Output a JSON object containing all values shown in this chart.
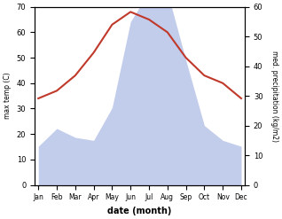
{
  "months": [
    "Jan",
    "Feb",
    "Mar",
    "Apr",
    "May",
    "Jun",
    "Jul",
    "Aug",
    "Sep",
    "Oct",
    "Nov",
    "Dec"
  ],
  "temperature": [
    34,
    37,
    43,
    52,
    63,
    68,
    65,
    60,
    50,
    43,
    40,
    34
  ],
  "precipitation": [
    13,
    19,
    16,
    15,
    26,
    55,
    65,
    65,
    42,
    20,
    15,
    13
  ],
  "temp_color": "#c0392b",
  "precip_fill_color": "#b8c4e8",
  "ylabel_left": "max temp (C)",
  "ylabel_right": "med. precipitation (kg/m2)",
  "xlabel": "date (month)",
  "ylim_left": [
    0,
    70
  ],
  "ylim_right": [
    0,
    60
  ],
  "yticks_left": [
    0,
    10,
    20,
    30,
    40,
    50,
    60,
    70
  ],
  "yticks_right": [
    0,
    10,
    20,
    30,
    40,
    50,
    60
  ],
  "background_color": "#ffffff"
}
